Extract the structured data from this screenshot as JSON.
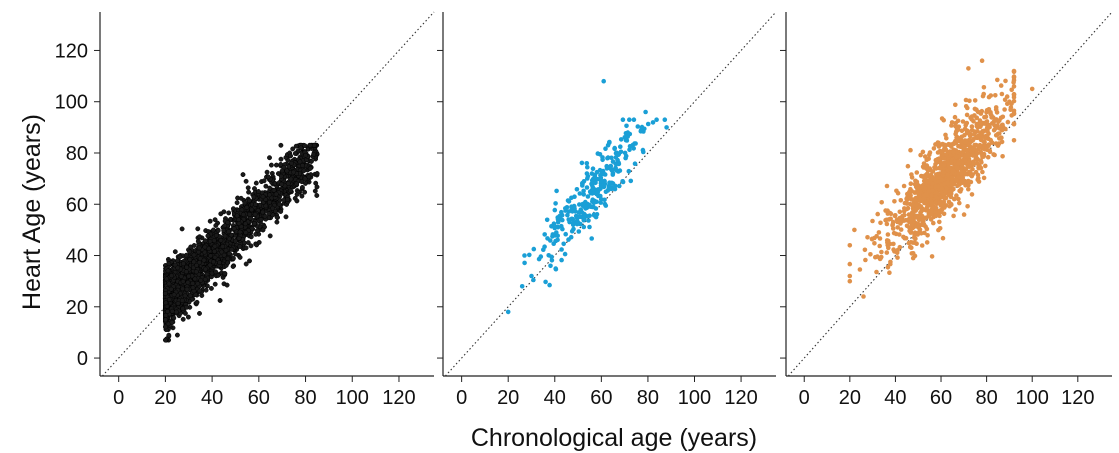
{
  "figure": {
    "ylabel": "Heart Age (years)",
    "xlabel": "Chronological age (years)"
  },
  "chart_data": [
    {
      "type": "scatter",
      "xlim": [
        -8,
        135
      ],
      "ylim": [
        -7,
        135
      ],
      "xticks": [
        0,
        20,
        40,
        60,
        80,
        100,
        120
      ],
      "yticks": [
        0,
        20,
        40,
        60,
        80,
        100,
        120
      ],
      "grid": false,
      "reference_line": "y = x (dotted)",
      "color": "#1a1a1a",
      "generator": {
        "seed": 11,
        "n": 2300,
        "x_min": 20,
        "x_max": 85,
        "x_mode": 28,
        "skew": 2.2,
        "slope": 0.88,
        "intercept": 5,
        "noise": 5.5,
        "y_min": 7,
        "y_max": 83,
        "marker_radius": 2.2,
        "outlined": true
      },
      "points": [
        [
          20,
          7
        ],
        [
          74,
          76
        ],
        [
          78,
          82
        ],
        [
          85,
          72
        ],
        [
          72,
          73
        ],
        [
          70,
          73
        ]
      ]
    },
    {
      "type": "scatter",
      "xlim": [
        -8,
        135
      ],
      "ylim": [
        -7,
        135
      ],
      "xticks": [
        0,
        20,
        40,
        60,
        80,
        100,
        120
      ],
      "yticks": [],
      "grid": false,
      "reference_line": "y = x (dotted)",
      "color": "#1a9fd6",
      "generator": {
        "seed": 23,
        "n": 300,
        "x_min": 26,
        "x_max": 88,
        "x_mode": 55,
        "skew": 1.0,
        "slope": 1.05,
        "intercept": 5,
        "noise": 6.0,
        "y_min": 28,
        "y_max": 93,
        "marker_radius": 2.3,
        "outlined": false
      },
      "points": [
        [
          20,
          18
        ],
        [
          61,
          108
        ],
        [
          79,
          96
        ],
        [
          88,
          90
        ],
        [
          72,
          93
        ],
        [
          27,
          40
        ],
        [
          30,
          32
        ]
      ]
    },
    {
      "type": "scatter",
      "xlim": [
        -8,
        135
      ],
      "ylim": [
        -7,
        135
      ],
      "xticks": [
        0,
        20,
        40,
        60,
        80,
        100,
        120
      ],
      "yticks": [],
      "grid": false,
      "reference_line": "y = x (dotted)",
      "color": "#e0914a",
      "generator": {
        "seed": 37,
        "n": 1100,
        "x_min": 20,
        "x_max": 92,
        "x_mode": 62,
        "skew": 0.8,
        "slope": 0.95,
        "intercept": 12,
        "noise": 8.0,
        "y_min": 32,
        "y_max": 112,
        "marker_radius": 2.3,
        "outlined": false
      },
      "points": [
        [
          20,
          30
        ],
        [
          26,
          24
        ],
        [
          100,
          105
        ],
        [
          78,
          116
        ],
        [
          72,
          113
        ],
        [
          90,
          100
        ],
        [
          22,
          50
        ],
        [
          20,
          44
        ]
      ]
    }
  ]
}
